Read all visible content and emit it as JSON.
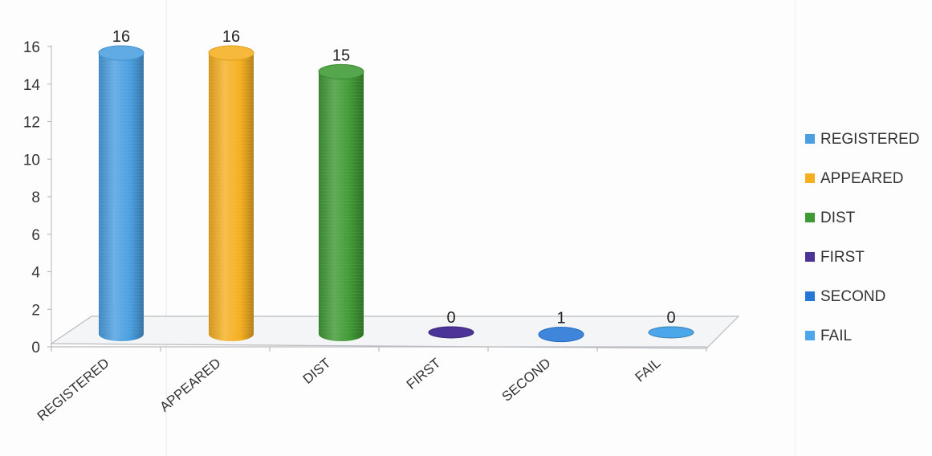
{
  "chart_data": {
    "type": "bar",
    "style": "3d-cylinder",
    "categories": [
      "REGISTERED",
      "APPEARED",
      "DIST",
      "FIRST",
      "SECOND",
      "FAIL"
    ],
    "values": [
      16,
      16,
      15,
      0,
      1,
      0
    ],
    "colors": [
      "#4a9fe0",
      "#f5b021",
      "#3f9a35",
      "#4b3398",
      "#2576d6",
      "#4ca7ea"
    ],
    "yticks": [
      "0",
      "2",
      "4",
      "6",
      "8",
      "10",
      "12",
      "14",
      "16"
    ],
    "ylim": [
      0,
      16
    ],
    "grid": false,
    "legend_position": "right",
    "legend": [
      "REGISTERED",
      "APPEARED",
      "DIST",
      "FIRST",
      "SECOND",
      "FAIL"
    ],
    "data_labels": [
      "16",
      "16",
      "15",
      "0",
      "1",
      "0"
    ],
    "title": "",
    "xlabel": "",
    "ylabel": ""
  }
}
